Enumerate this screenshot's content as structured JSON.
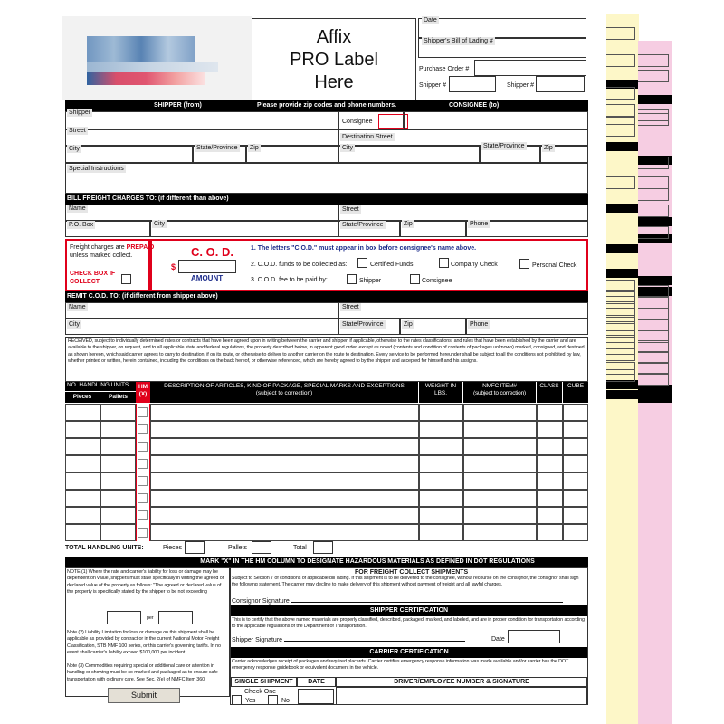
{
  "header": {
    "pro_label": [
      "Affix",
      "PRO Label",
      "Here"
    ],
    "date_label": "Date",
    "bol_label": "Shipper's Bill of Lading #",
    "po_label": "Purchase Order #",
    "shipper_no_label_1": "Shipper #",
    "shipper_no_label_2": "Shipper #"
  },
  "section_bar": {
    "shipper": "SHIPPER (from)",
    "note": "Please provide zip codes and phone numbers.",
    "consignee": "CONSIGNEE (to)"
  },
  "shipper": {
    "shipper": "Shipper",
    "street": "Street",
    "city": "City",
    "state": "State/Province",
    "zip": "Zip",
    "special": "Special Instructions"
  },
  "consignee": {
    "consignee": "Consignee",
    "street": "Destination Street",
    "city": "City",
    "state": "State/Province",
    "zip": "Zip"
  },
  "bill_to": {
    "title": "BILL FREIGHT CHARGES TO:  (if different than above)",
    "name": "Name",
    "street": "Street",
    "po_box": "P.O. Box",
    "city": "City",
    "state": "State/Province",
    "zip": "Zip",
    "phone": "Phone"
  },
  "prepaid": {
    "line1a": "Freight charges are ",
    "line1b": "PREPAID",
    "line2": "unless marked collect.",
    "check1": "CHECK BOX IF",
    "check2": "COLLECT"
  },
  "cod": {
    "title": "C. O. D.",
    "dollar": "$",
    "amount": "AMOUNT",
    "rule1": "1. The letters \"C.O.D.\" must appear in box before consignee's name above.",
    "rule2": "2. C.O.D. funds to be collected as:",
    "certified": "Certified Funds",
    "company": "Company Check",
    "personal": "Personal Check",
    "rule3": "3. C.O.D. fee to be paid by:",
    "shipper": "Shipper",
    "consignee": "Consignee"
  },
  "remit": {
    "title": "REMIT C.O.D. TO: (if different from shipper above)",
    "name": "Name",
    "street": "Street",
    "city": "City",
    "state": "State/Province",
    "zip": "Zip",
    "phone": "Phone"
  },
  "terms": "RECEIVED, subject to individually determined rates or contracts that have been agreed upon in writing between the carrier and shipper, if applicable, otherwise to the rates classifications, and rules that have been established by the carrier and are available to the shipper, on request, and to all applicable state and federal regulations, the property described below, in apparent good order, except as noted (contents and condition of contents of packages unknown) marked, consigned, and destined as shown hereon, which said carrier agrees to carry to destination, if on its route, or otherwise to deliver to another carrier on the route to destination. Every service to be performed hereunder shall be subject to all the conditions not prohibited by law, whether printed or written, herein contained, including the conditions on the back hereof, or otherwise referenced, which are hereby agreed to by the shipper and accepted for himself and his assigns.",
  "table": {
    "handling": "NO. HANDLING UNITS",
    "pieces": "Pieces",
    "pallets": "Pallets",
    "hm": "HM",
    "hm_x": "(X)",
    "description": "DESCRIPTION OF ARTICLES, KIND OF PACKAGE, SPECIAL MARKS AND EXCEPTIONS",
    "description_sub": "(subject to correction)",
    "weight": "WEIGHT IN",
    "weight_sub": "LBS.",
    "nmfc": "NMFC ITEM#",
    "nmfc_sub": "(subject to correction)",
    "class": "CLASS",
    "cube": "CUBE"
  },
  "totals": {
    "title": "TOTAL HANDLING UNITS:",
    "pieces": "Pieces",
    "pallets": "Pallets",
    "total": "Total"
  },
  "hazmat_bar": "MARK \"X\" IN THE HM COLUMN TO DESIGNATE HAZARDOUS MATERIALS AS DEFINED IN DOT REGULATIONS",
  "notes": {
    "note1": "NOTE (1) Where the rate and carrier's liability for loss or damage may be dependent on value, shippers must state specifically in writing the agreed or declared value of the property as follows: \"The agreed or declared value of the property is specifically stated by the shipper to be not exceeding",
    "per": "per",
    "note2": "Note (2) Liability Limitation for loss or damage on this shipment shall be applicable as provided by contract or in the current National Motor Freight Classification, STB NMF 100 series, or this carrier's governing tariffs. In no event shall carrier's liability exceed $100,000 per incident.",
    "note3": "Note (3) Commodities requiring special or additional care or attention in handling or showing must be so marked and packaged as to ensure safe transportation with ordinary care. See Sec. 2(e) of NMFC Item 360."
  },
  "freight_collect": {
    "title": "FOR FREIGHT COLLECT SHIPMENTS",
    "text": "Subject to Section 7 of conditions of applicable bill lading. If this shipment is to be delivered to the consignee, without recourse on the consignor, the consignor shall sign the following statement. The carrier may decline to make delivery of this shipment without payment of freight and all lawful charges.",
    "signature": "Consignor Signature"
  },
  "shipper_cert": {
    "title": "SHIPPER CERTIFICATION",
    "text": "This is to certify that the above named materials are properly classified, described, packaged, marked, and labeled, and are in proper condition for transportation according to the applicable regulations of the Department of Transportation.",
    "signature": "Shipper Signature",
    "date": "Date"
  },
  "carrier_cert": {
    "title": "CARRIER CERTIFICATION",
    "text": "Carrier acknowledges receipt of packages and required placards. Carrier certifies emergency response information was made available and/or carrier has the DOT emergency response guidebook or equivalent document in the vehicle.",
    "single": "SINGLE SHIPMENT",
    "date": "DATE",
    "driver": "DRIVER/EMPLOYEE NUMBER & SIGNATURE",
    "check_one": "Check One",
    "yes": "Yes",
    "no": "No"
  },
  "submit": "Submit",
  "colors": {
    "red": "#e0001b",
    "blue": "#1a2a8a",
    "yellow_copy": "#fdf7c8",
    "pink_copy": "#f6cde2"
  }
}
